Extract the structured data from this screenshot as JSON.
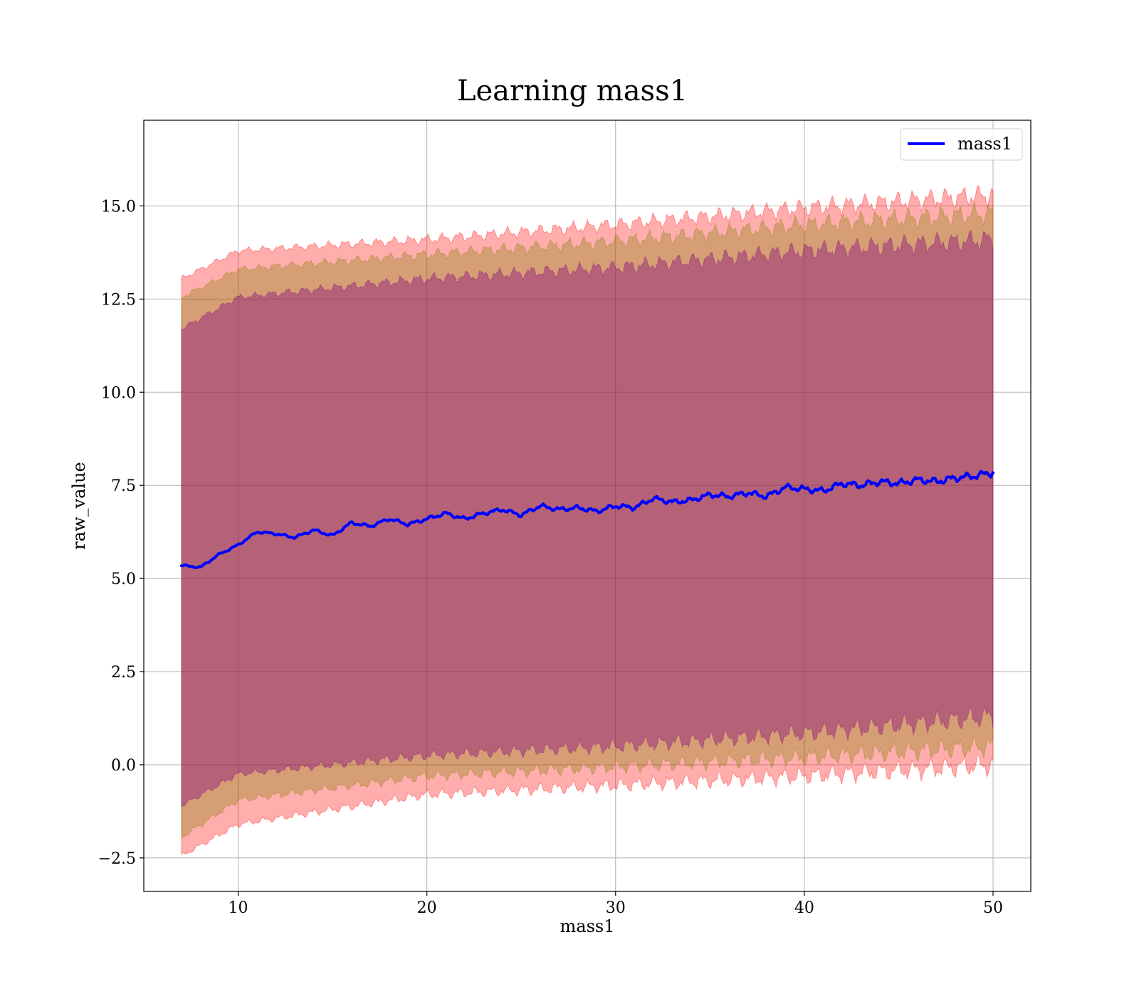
{
  "chart_data": {
    "type": "line",
    "title": "Learning mass1",
    "xlabel": "mass1",
    "ylabel": "raw_value",
    "xlim": [
      5,
      52
    ],
    "ylim": [
      -3.4,
      17.3
    ],
    "xticks": [
      10,
      20,
      30,
      40,
      50
    ],
    "yticks": [
      -2.5,
      0.0,
      2.5,
      5.0,
      7.5,
      10.0,
      12.5,
      15.0
    ],
    "xtick_labels": [
      "10",
      "20",
      "30",
      "40",
      "50"
    ],
    "ytick_labels": [
      "−2.5",
      "0.0",
      "2.5",
      "5.0",
      "7.5",
      "10.0",
      "12.5",
      "15.0"
    ],
    "grid": true,
    "legend": {
      "position": "upper right",
      "entries": [
        "mass1"
      ]
    },
    "colors": {
      "line": "#0000ff",
      "band_outer": "#ff0000",
      "band_middle": "#808000",
      "band_inner": "#800080",
      "grid": "#b0b0b0"
    },
    "series": [
      {
        "name": "mass1",
        "x": [
          7,
          8,
          9,
          10,
          11,
          12,
          13,
          14,
          15,
          16,
          17,
          18,
          19,
          20,
          21,
          22,
          23,
          24,
          25,
          26,
          27,
          28,
          29,
          30,
          31,
          32,
          33,
          34,
          35,
          36,
          37,
          38,
          39,
          40,
          41,
          42,
          43,
          44,
          45,
          46,
          47,
          48,
          49,
          50
        ],
        "y": [
          5.35,
          5.3,
          5.65,
          5.9,
          6.25,
          6.2,
          6.1,
          6.3,
          6.15,
          6.5,
          6.4,
          6.6,
          6.45,
          6.6,
          6.75,
          6.6,
          6.75,
          6.85,
          6.7,
          6.95,
          6.85,
          6.9,
          6.8,
          6.95,
          6.9,
          7.15,
          7.05,
          7.1,
          7.25,
          7.2,
          7.3,
          7.2,
          7.45,
          7.4,
          7.35,
          7.55,
          7.5,
          7.6,
          7.55,
          7.65,
          7.6,
          7.7,
          7.75,
          7.85
        ]
      }
    ],
    "bands": [
      {
        "name": "outer",
        "x": [
          7,
          10,
          20,
          30,
          40,
          50
        ],
        "lower": [
          -2.45,
          -1.6,
          -0.8,
          -0.55,
          -0.3,
          0.0
        ],
        "upper": [
          13.05,
          13.8,
          14.1,
          14.5,
          14.95,
          15.3
        ]
      },
      {
        "name": "middle",
        "x": [
          7,
          10,
          20,
          30,
          40,
          50
        ],
        "lower": [
          -1.95,
          -0.95,
          -0.3,
          -0.05,
          0.2,
          0.5
        ],
        "upper": [
          12.55,
          13.3,
          13.7,
          14.05,
          14.5,
          14.8
        ]
      },
      {
        "name": "inner",
        "x": [
          7,
          10,
          20,
          30,
          40,
          50
        ],
        "lower": [
          -1.1,
          -0.25,
          0.25,
          0.5,
          0.85,
          1.3
        ],
        "upper": [
          11.7,
          12.55,
          13.05,
          13.35,
          13.8,
          14.1
        ]
      }
    ]
  }
}
